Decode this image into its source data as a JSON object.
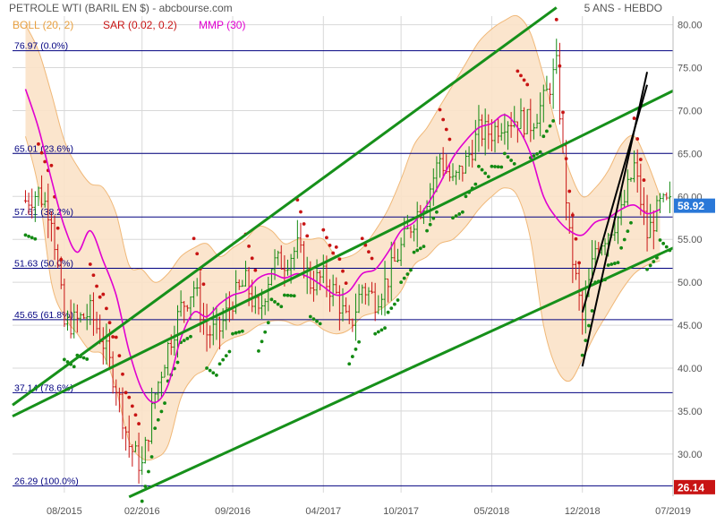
{
  "header": {
    "title": "PETROLE WTI (BARIL EN $) - abcbourse.com",
    "period": "5 ANS - HEBDO"
  },
  "legend": [
    {
      "label": "BOLL (20, 2)",
      "color": "#e8a040"
    },
    {
      "label": "SAR (0.02, 0.2)",
      "color": "#c81414"
    },
    {
      "label": "MMP (30)",
      "color": "#e000d0"
    }
  ],
  "colors": {
    "background": "#ffffff",
    "boll_fill": "#fbe2c8",
    "boll_line": "#f0b878",
    "mmp": "#e000d0",
    "sar_up": "#138a13",
    "sar_down": "#c81414",
    "candle_up": "#138a13",
    "candle_down": "#c81414",
    "channel": "#16901a",
    "trend": "#000000",
    "fib_line": "#000080",
    "fib_text": "#000080",
    "axis_text": "#555555",
    "grid": "#d8d8d8",
    "badge_last": "#2a78d8",
    "badge_low": "#c81414"
  },
  "badges": {
    "last": {
      "label": "58.92",
      "value": 58.92
    },
    "low": {
      "label": "26.14",
      "value": 26.14
    }
  },
  "chart_data": {
    "type": "line",
    "title": "PETROLE WTI (BARIL EN $)",
    "subtitle": "5 ANS - HEBDO",
    "xlabel": "",
    "ylabel": "",
    "y_side": "right",
    "ylim": [
      25.5,
      81
    ],
    "yticks": [
      30,
      35,
      40,
      45,
      50,
      55,
      60,
      65,
      70,
      75,
      80
    ],
    "ytick_labels": [
      "30.00",
      "35.00",
      "40.00",
      "45.00",
      "50.00",
      "55.00",
      "60.00",
      "65.00",
      "70.00",
      "75.00",
      "80.00"
    ],
    "grid": true,
    "x": [
      "2015-05",
      "2015-06",
      "2015-07",
      "2015-08",
      "2015-09",
      "2015-10",
      "2015-11",
      "2015-12",
      "2016-01",
      "2016-02",
      "2016-03",
      "2016-04",
      "2016-05",
      "2016-06",
      "2016-07",
      "2016-08",
      "2016-09",
      "2016-10",
      "2016-11",
      "2016-12",
      "2017-01",
      "2017-02",
      "2017-03",
      "2017-04",
      "2017-05",
      "2017-06",
      "2017-07",
      "2017-08",
      "2017-09",
      "2017-10",
      "2017-11",
      "2017-12",
      "2018-01",
      "2018-02",
      "2018-03",
      "2018-04",
      "2018-05",
      "2018-06",
      "2018-07",
      "2018-08",
      "2018-09",
      "2018-10",
      "2018-11",
      "2018-12",
      "2019-01",
      "2019-02",
      "2019-03",
      "2019-04",
      "2019-05",
      "2019-06"
    ],
    "xlim": [
      "2015-04",
      "2019-07"
    ],
    "xtick_values": [
      "2015-08",
      "2016-02",
      "2016-09",
      "2017-04",
      "2017-10",
      "2018-05",
      "2018-12",
      "2019-07"
    ],
    "xtick_labels": [
      "08/2015",
      "02/2016",
      "09/2016",
      "04/2017",
      "10/2017",
      "05/2018",
      "12/2018",
      "07/2019"
    ],
    "fibonacci": [
      {
        "value": 76.97,
        "label": "76.97 (0.0%)"
      },
      {
        "value": 65.01,
        "label": "65.01 (23.6%)"
      },
      {
        "value": 57.61,
        "label": "57.61 (38.2%)"
      },
      {
        "value": 51.63,
        "label": "51.63 (50.0%)"
      },
      {
        "value": 45.65,
        "label": "45.65 (61.8%)"
      },
      {
        "value": 37.14,
        "label": "37.14 (78.6%)"
      },
      {
        "value": 26.29,
        "label": "26.29 (100.0%)"
      }
    ],
    "series": [
      {
        "name": "MMP (30)",
        "values": [
          72.5,
          68,
          62,
          56.5,
          53.5,
          56,
          52.5,
          48.5,
          42,
          37.5,
          36,
          38,
          43.5,
          46.5,
          46,
          47.5,
          48.5,
          49,
          50.5,
          51,
          50.5,
          51,
          50.5,
          49.5,
          48.5,
          49,
          51,
          51.5,
          53.5,
          56,
          57,
          59,
          61.5,
          64.5,
          66.5,
          68,
          68.5,
          69.5,
          68,
          65,
          60,
          57.5,
          56,
          55.5,
          57,
          57.5,
          58.5,
          59,
          58,
          58.5
        ]
      },
      {
        "name": "BOLL (20, 2) upper",
        "values": [
          80,
          77,
          72,
          66.5,
          63.5,
          61.5,
          61,
          58,
          52,
          51.5,
          50,
          51,
          53,
          54,
          54.5,
          53,
          54,
          55,
          56.5,
          56,
          54.5,
          55,
          55,
          55,
          53,
          53,
          54,
          56,
          58.5,
          62,
          66,
          68,
          70.5,
          73,
          75.5,
          78,
          79.5,
          80.5,
          81,
          79,
          74,
          68,
          63,
          60,
          61,
          63,
          66,
          67,
          64,
          60
        ]
      },
      {
        "name": "BOLL (20, 2) lower",
        "values": [
          67,
          61,
          50,
          46,
          44,
          42,
          41.5,
          37.5,
          31.5,
          29.5,
          29.5,
          31,
          36.5,
          39,
          40,
          42.5,
          43.5,
          44,
          45,
          45.5,
          45.5,
          45,
          45.5,
          44.5,
          44,
          44.5,
          46,
          46.5,
          47.5,
          49,
          52,
          53,
          54.5,
          55,
          56.5,
          58.5,
          60,
          61,
          60,
          55,
          45,
          40,
          38.5,
          41,
          44,
          46.5,
          49,
          51,
          52,
          52.5
        ]
      },
      {
        "name": "Price",
        "values": [
          59.5,
          60.5,
          58,
          45,
          45.5,
          46.5,
          43,
          38,
          31,
          28.5,
          37,
          42.5,
          47,
          49.5,
          44,
          44.5,
          48,
          50,
          46,
          52,
          52.5,
          54,
          50,
          50.5,
          48.5,
          44.5,
          49.5,
          48,
          50.5,
          54,
          57.5,
          60,
          64.5,
          61.5,
          64,
          67.5,
          67.5,
          69,
          69,
          68.5,
          71,
          75,
          55,
          45.5,
          54,
          56,
          58,
          63.5,
          55.5,
          58.92
        ]
      }
    ],
    "channels": [
      {
        "name": "channel-upper",
        "points": [
          [
            "2015-04",
            35.7
          ],
          [
            "2018-10",
            82
          ]
        ]
      },
      {
        "name": "channel-middle",
        "points": [
          [
            "2015-04",
            34.4
          ],
          [
            "2019-07",
            72.3
          ]
        ]
      },
      {
        "name": "channel-lower",
        "points": [
          [
            "2016-01",
            25
          ],
          [
            "2019-07",
            54
          ]
        ]
      }
    ],
    "trendlines": [
      {
        "name": "trend-steep-1",
        "points": [
          [
            "2018-12",
            40.2
          ],
          [
            "2019-05",
            74.5
          ]
        ]
      },
      {
        "name": "trend-steep-2",
        "points": [
          [
            "2018-12",
            46.5
          ],
          [
            "2019-05",
            73
          ]
        ]
      }
    ]
  }
}
